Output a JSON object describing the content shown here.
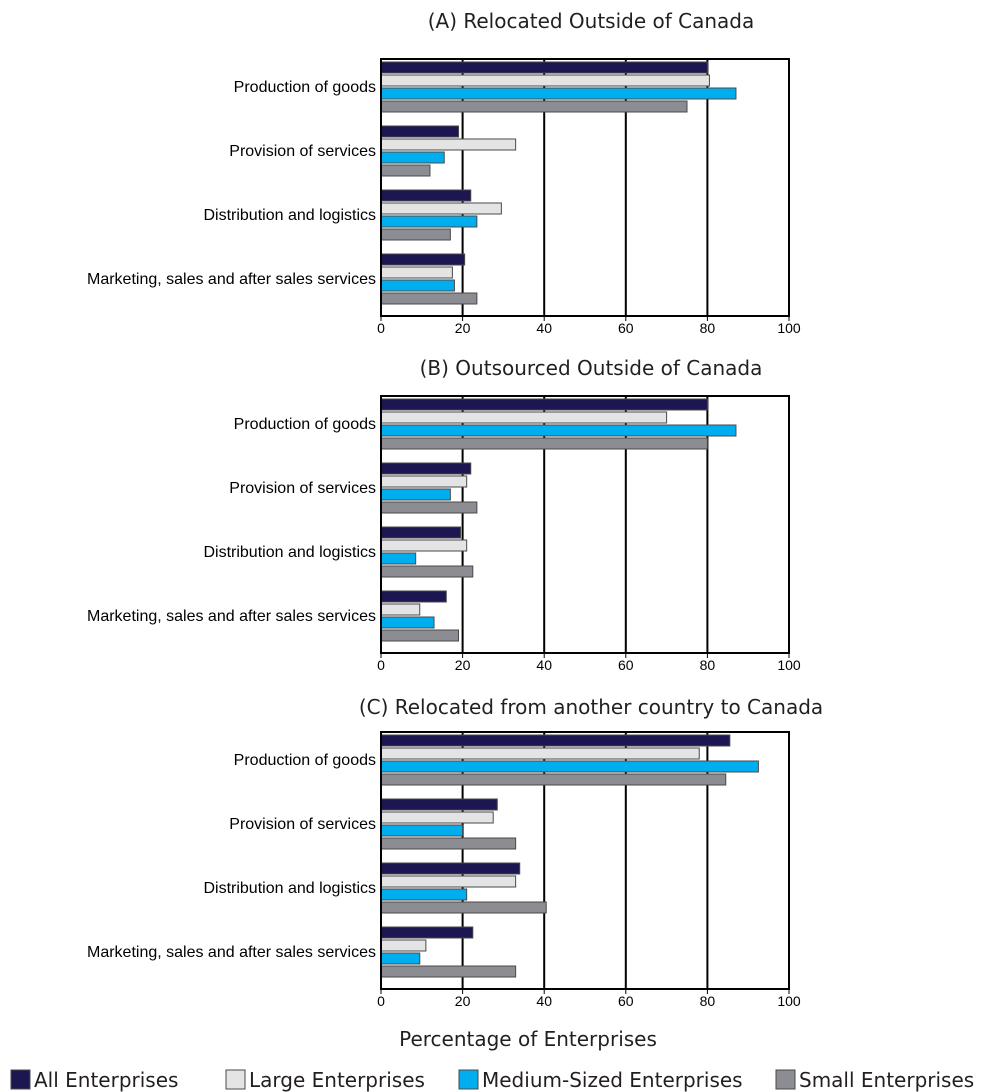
{
  "chart_data": [
    {
      "type": "bar",
      "orientation": "horizontal",
      "title": "(A) Relocated Outside of Canada",
      "categories": [
        "Production of goods",
        "Provision of services",
        "Distribution and logistics",
        "Marketing, sales and after sales services"
      ],
      "series": [
        {
          "name": "All Enterprises",
          "values": [
            80,
            19,
            22,
            20.5
          ]
        },
        {
          "name": "Large Enterprises",
          "values": [
            80.5,
            33,
            29.5,
            17.5
          ]
        },
        {
          "name": "Medium-Sized Enterprises",
          "values": [
            87,
            15.5,
            23.5,
            18
          ]
        },
        {
          "name": "Small Enterprises",
          "values": [
            75,
            12,
            17,
            23.5
          ]
        }
      ],
      "xlim": [
        0,
        100
      ],
      "xticks": [
        0,
        20,
        40,
        60,
        80,
        100
      ],
      "grid": true
    },
    {
      "type": "bar",
      "orientation": "horizontal",
      "title": "(B) Outsourced Outside of Canada",
      "categories": [
        "Production of goods",
        "Provision of services",
        "Distribution and logistics",
        "Marketing, sales and after sales services"
      ],
      "series": [
        {
          "name": "All Enterprises",
          "values": [
            80,
            22,
            19.5,
            16
          ]
        },
        {
          "name": "Large Enterprises",
          "values": [
            70,
            21,
            21,
            9.5
          ]
        },
        {
          "name": "Medium-Sized Enterprises",
          "values": [
            87,
            17,
            8.5,
            13
          ]
        },
        {
          "name": "Small Enterprises",
          "values": [
            80,
            23.5,
            22.5,
            19
          ]
        }
      ],
      "xlim": [
        0,
        100
      ],
      "xticks": [
        0,
        20,
        40,
        60,
        80,
        100
      ],
      "grid": true
    },
    {
      "type": "bar",
      "orientation": "horizontal",
      "title": "(C) Relocated from another country to Canada",
      "categories": [
        "Production of goods",
        "Provision of services",
        "Distribution and logistics",
        "Marketing, sales and after sales services"
      ],
      "series": [
        {
          "name": "All Enterprises",
          "values": [
            85.5,
            28.5,
            34,
            22.5
          ]
        },
        {
          "name": "Large Enterprises",
          "values": [
            78,
            27.5,
            33,
            11
          ]
        },
        {
          "name": "Medium-Sized Enterprises",
          "values": [
            92.5,
            20,
            21,
            9.5
          ]
        },
        {
          "name": "Small Enterprises",
          "values": [
            84.5,
            33,
            40.5,
            33
          ]
        }
      ],
      "xlim": [
        0,
        100
      ],
      "xticks": [
        0,
        20,
        40,
        60,
        80,
        100
      ],
      "grid": true,
      "xlabel": "Percentage of Enterprises"
    }
  ],
  "legend": [
    {
      "name": "All Enterprises",
      "color": "#1c1750"
    },
    {
      "name": "Large Enterprises",
      "color": "#e4e4e4"
    },
    {
      "name": "Medium-Sized Enterprises",
      "color": "#00aeef"
    },
    {
      "name": "Small Enterprises",
      "color": "#8c8c93"
    }
  ]
}
